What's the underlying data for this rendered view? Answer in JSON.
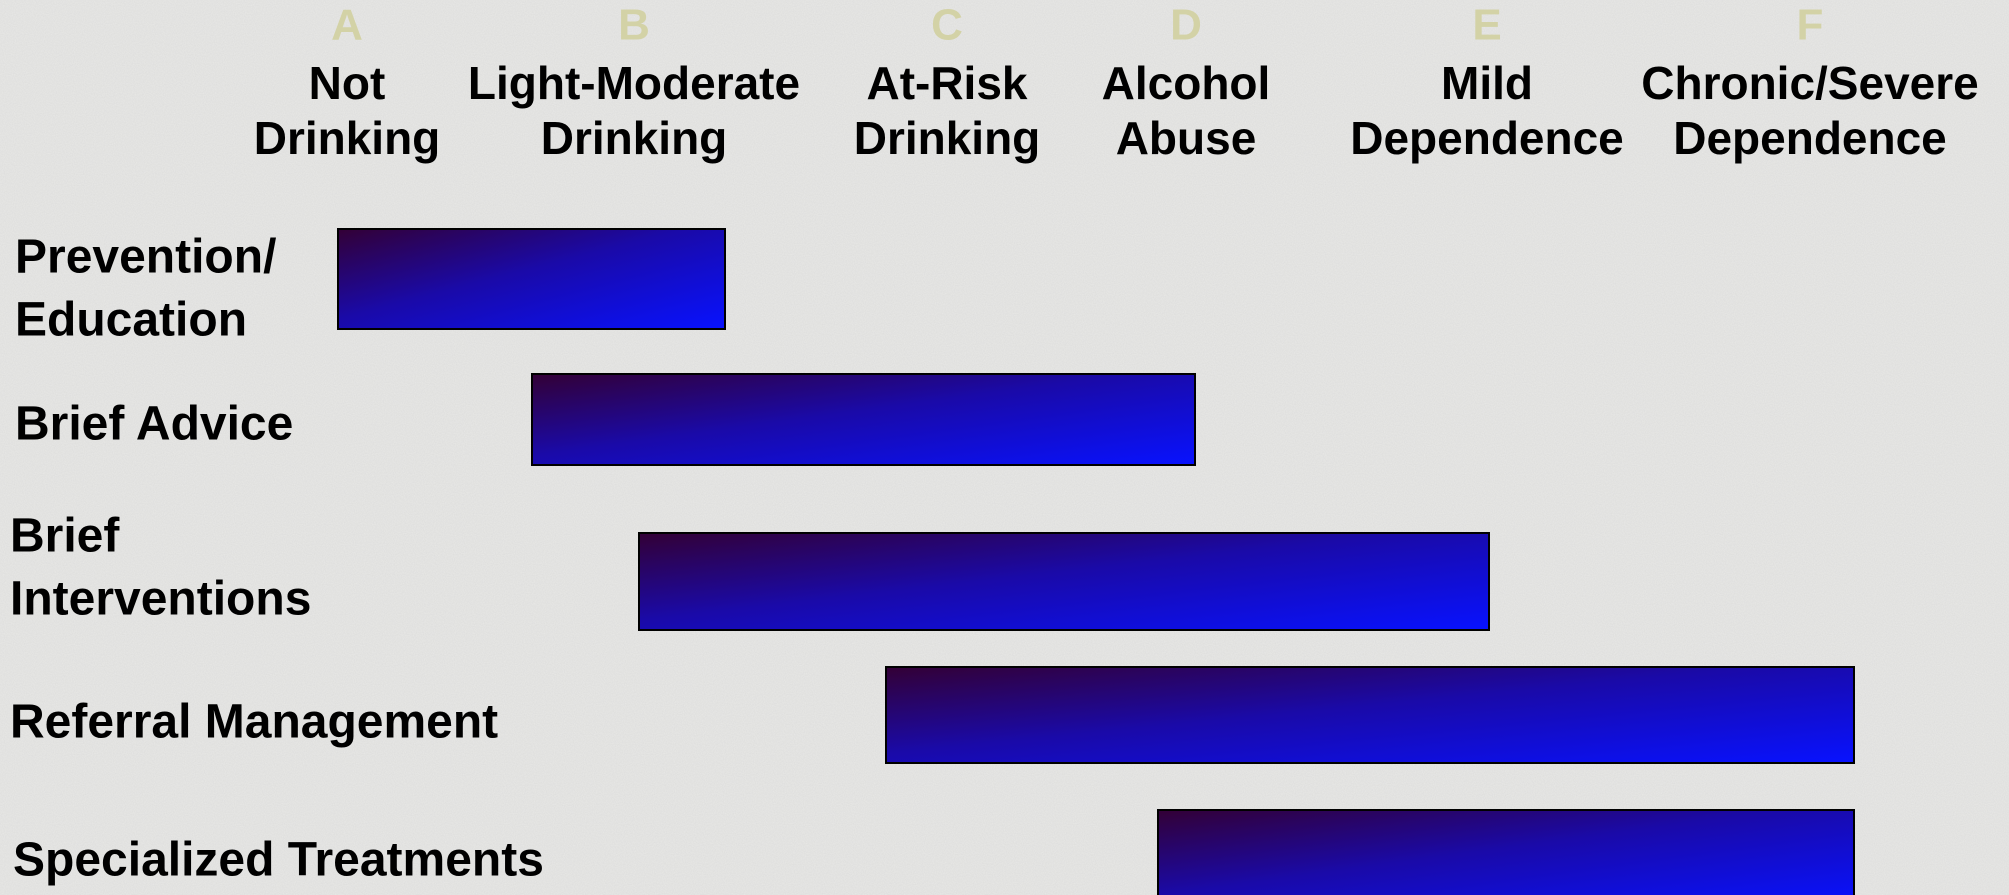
{
  "columns": [
    {
      "letter": "A",
      "label": [
        "Not",
        "Drinking"
      ]
    },
    {
      "letter": "B",
      "label": [
        "Light-Moderate",
        "Drinking"
      ]
    },
    {
      "letter": "C",
      "label": [
        "At-Risk",
        "Drinking"
      ]
    },
    {
      "letter": "D",
      "label": [
        "Alcohol",
        "Abuse"
      ]
    },
    {
      "letter": "E",
      "label": [
        "Mild",
        "Dependence"
      ]
    },
    {
      "letter": "F",
      "label": [
        "Chronic/Severe",
        "Dependence"
      ]
    }
  ],
  "rows": [
    {
      "label": [
        "Prevention/",
        "Education"
      ]
    },
    {
      "label": [
        "Brief Advice"
      ]
    },
    {
      "label": [
        "Brief",
        "Interventions"
      ]
    },
    {
      "label": [
        "Referral Management"
      ]
    },
    {
      "label": [
        "Specialized Treatments"
      ]
    }
  ]
}
